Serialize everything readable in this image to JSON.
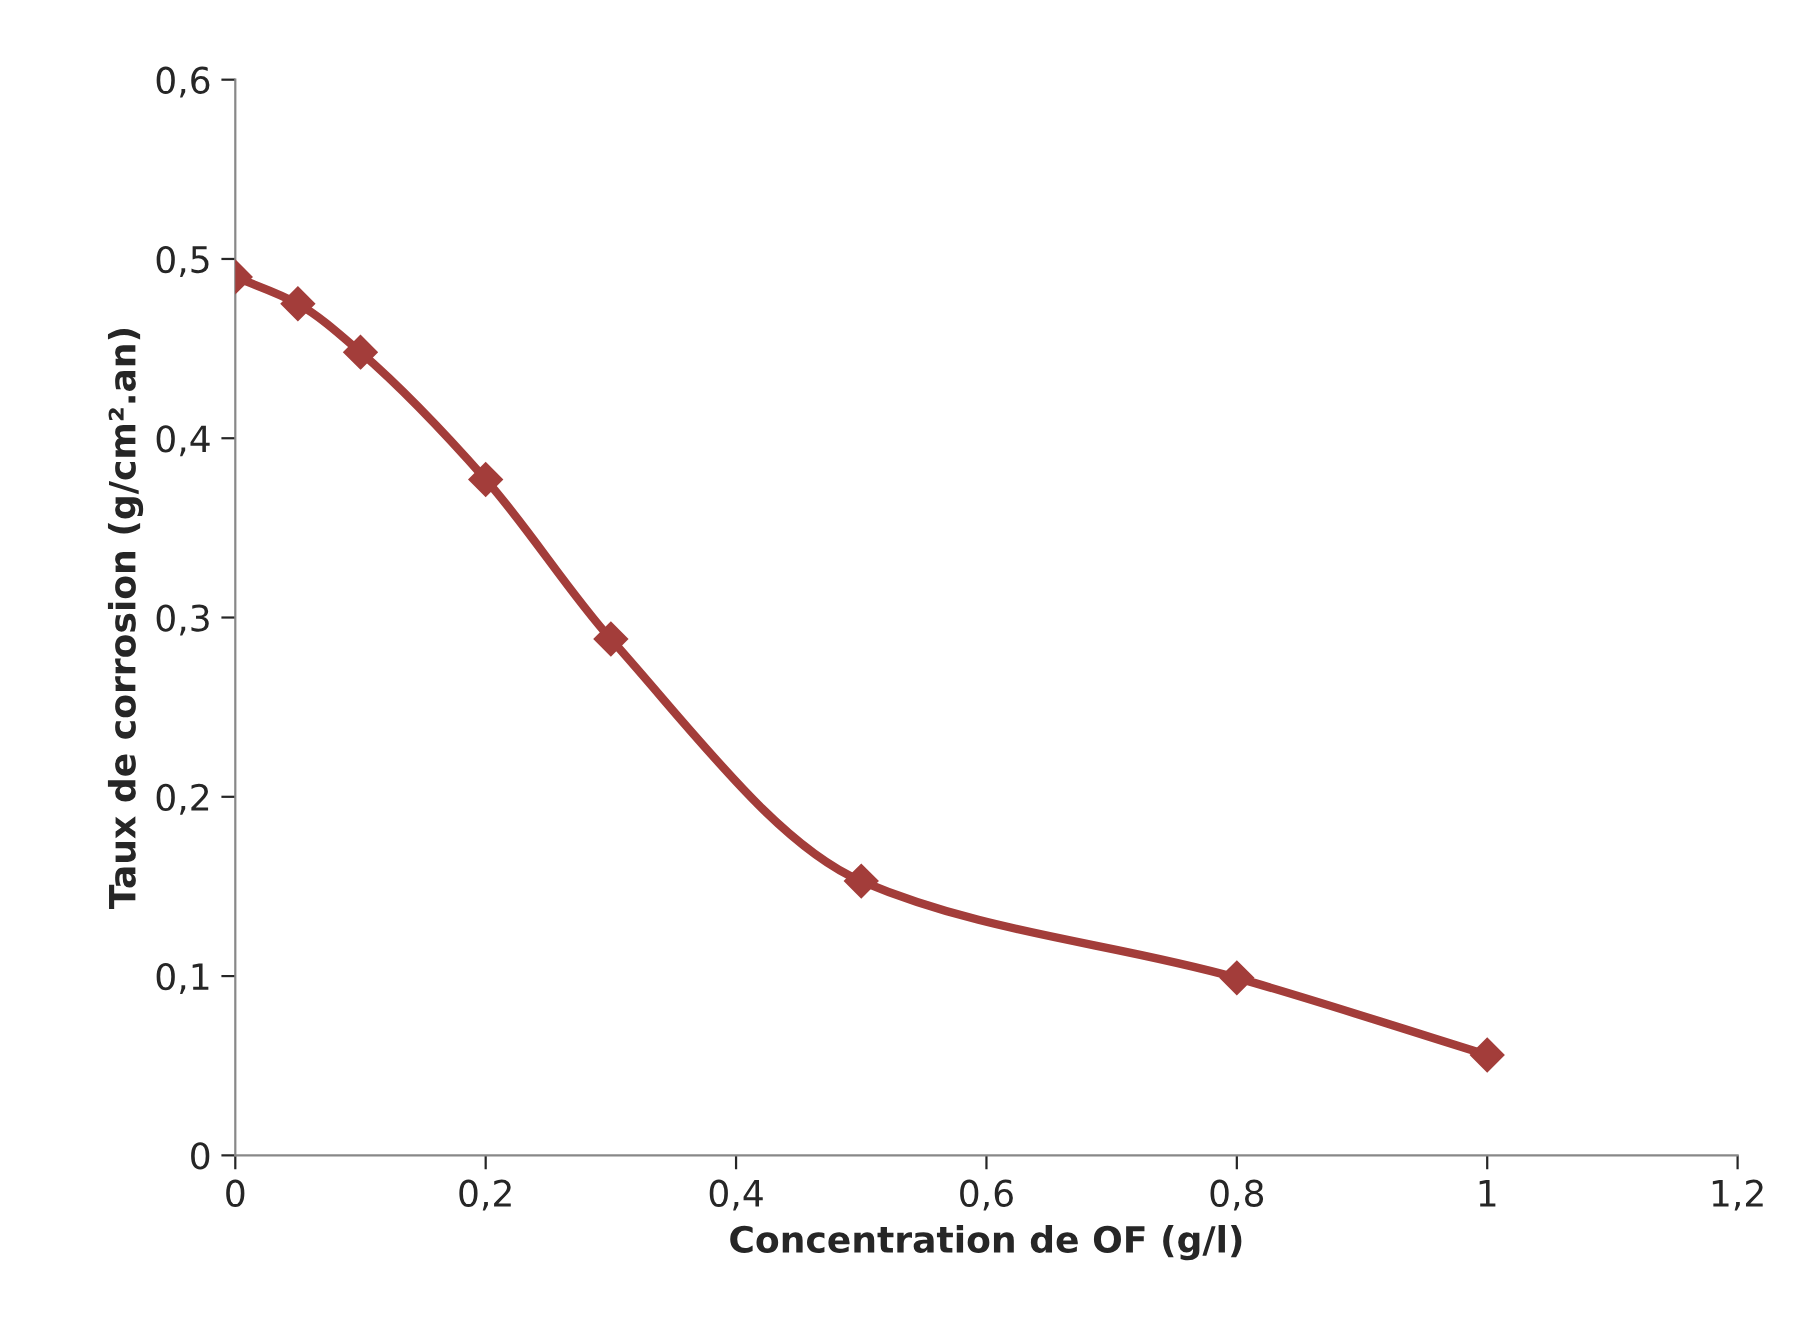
{
  "chart_data": {
    "type": "line",
    "xlabel": "Concentration de OF (g/l)",
    "ylabel": "Taux de corrosion (g/cm².an)",
    "x": [
      0,
      0.05,
      0.1,
      0.2,
      0.3,
      0.5,
      0.8,
      1
    ],
    "series": [
      {
        "color": "#a33d3a",
        "values": [
          0.49,
          0.475,
          0.448,
          0.377,
          0.288,
          0.153,
          0.099,
          0.056
        ]
      }
    ],
    "marker": "diamond",
    "line_style": "solid",
    "grid": false,
    "legend": false,
    "xlim": [
      0,
      1.2
    ],
    "xticks": [
      0,
      {
        "value": 0.2,
        "label": "0,2"
      },
      {
        "value": 0.4,
        "label": "0,4"
      },
      {
        "value": 0.6,
        "label": "0,6"
      },
      {
        "value": 0.8,
        "label": "0,8"
      },
      1,
      {
        "value": 1.2,
        "label": "1,2"
      }
    ],
    "ylim": [
      0,
      0.6
    ],
    "yticks": [
      0,
      {
        "value": 0.1,
        "label": "0,1"
      },
      {
        "value": 0.2,
        "label": "0,2"
      },
      {
        "value": 0.3,
        "label": "0,3"
      },
      {
        "value": 0.4,
        "label": "0,4"
      },
      {
        "value": 0.5,
        "label": "0,5"
      },
      {
        "value": 0.6,
        "label": "0,6"
      }
    ]
  }
}
